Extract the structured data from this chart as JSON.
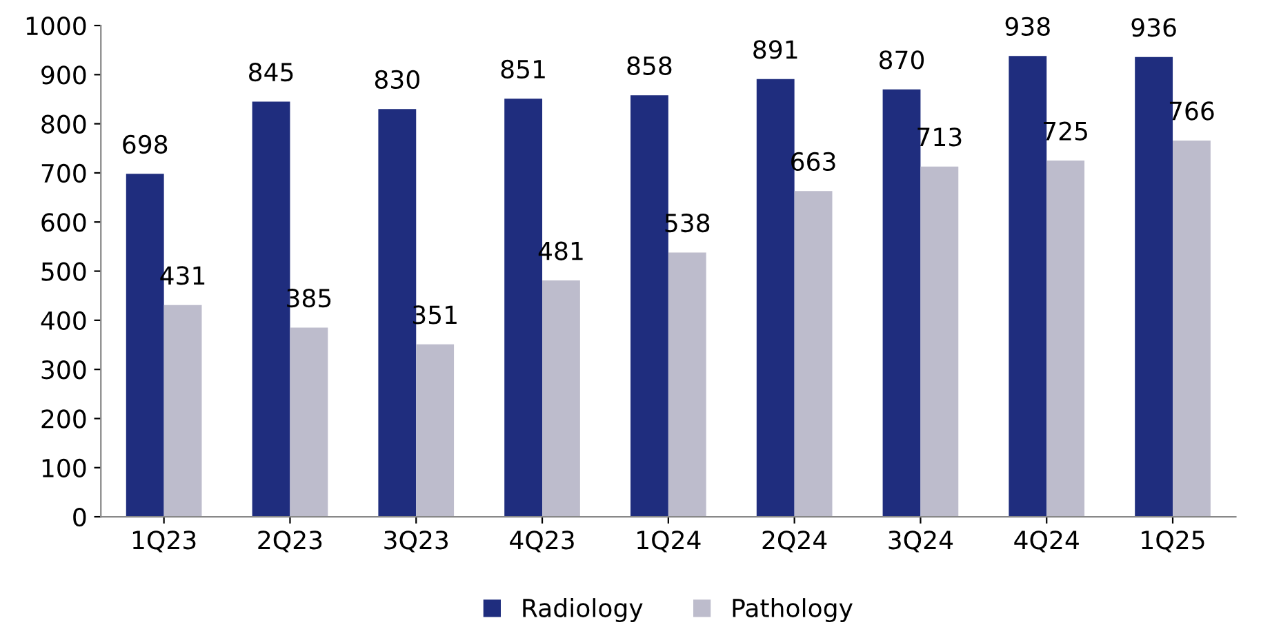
{
  "chart_data": {
    "type": "bar",
    "categories": [
      "1Q23",
      "2Q23",
      "3Q23",
      "4Q23",
      "1Q24",
      "2Q24",
      "3Q24",
      "4Q24",
      "1Q25"
    ],
    "series": [
      {
        "name": "Radiology",
        "color": "#1f2d7e",
        "values": [
          698,
          845,
          830,
          851,
          858,
          891,
          870,
          938,
          936
        ]
      },
      {
        "name": "Pathology",
        "color": "#bdbccc",
        "values": [
          431,
          385,
          351,
          481,
          538,
          663,
          713,
          725,
          766
        ]
      }
    ],
    "ylim": [
      0,
      1000
    ],
    "yticks": [
      0,
      100,
      200,
      300,
      400,
      500,
      600,
      700,
      800,
      900,
      1000
    ],
    "data_labels": true,
    "grid": false,
    "legend": "bottom"
  }
}
